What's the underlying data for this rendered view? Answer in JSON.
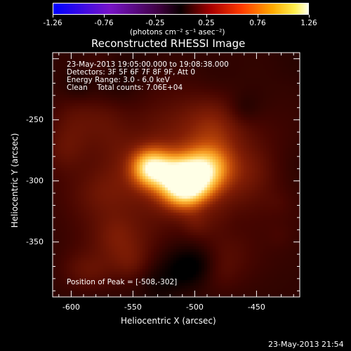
{
  "colorbar": {
    "ticks": [
      "-1.26",
      "-0.76",
      "-0.25",
      "0.25",
      "0.76",
      "1.26"
    ],
    "units": "(photons cm⁻² s⁻¹ asec⁻²)",
    "min": -1.26,
    "max": 1.26
  },
  "image": {
    "title": "Reconstructed RHESSI Image",
    "info_lines": [
      "23-May-2013 19:05:00.000 to 19:08:38.000",
      "Detectors: 3F 5F 6F 7F 8F 9F, Att 0",
      "Energy Range: 3.0 - 6.0 keV",
      "Clean    Total counts: 7.06E+04"
    ],
    "peak_text": "Position of Peak = [-508,-302]",
    "peak": [
      -508,
      -302
    ],
    "colormap": "red-temperature",
    "x_range": [
      -615,
      -415
    ],
    "y_range": [
      -395,
      -195
    ]
  },
  "axes": {
    "xlabel": "Heliocentric X (arcsec)",
    "ylabel": "Heliocentric Y (arcsec)",
    "xticks": [
      -600,
      -550,
      -500,
      -450
    ],
    "yticks": [
      -250,
      -300,
      -350
    ],
    "xtick_labels": [
      "-600",
      "-550",
      "-500",
      "-450"
    ],
    "ytick_labels": [
      "-250",
      "-300",
      "-350"
    ]
  },
  "footer": {
    "timestamp": "23-May-2013 21:54"
  },
  "chart_data": {
    "type": "heatmap",
    "title": "Reconstructed RHESSI Image",
    "xlabel": "Heliocentric X (arcsec)",
    "ylabel": "Heliocentric Y (arcsec)",
    "xlim": [
      -615,
      -415
    ],
    "ylim": [
      -395,
      -195
    ],
    "peak": {
      "x": -508,
      "y": -302
    },
    "sources": [
      {
        "x": -508,
        "y": -302,
        "amplitude": 1.0,
        "sigma": 14
      },
      {
        "x": -535,
        "y": -289,
        "amplitude": 0.72,
        "sigma": 11
      },
      {
        "x": -490,
        "y": -289,
        "amplitude": 0.35,
        "sigma": 12
      }
    ],
    "colorbar_range": [
      -1.26,
      1.26
    ],
    "colorbar_units": "(photons cm⁻² s⁻¹ asec⁻²)"
  }
}
